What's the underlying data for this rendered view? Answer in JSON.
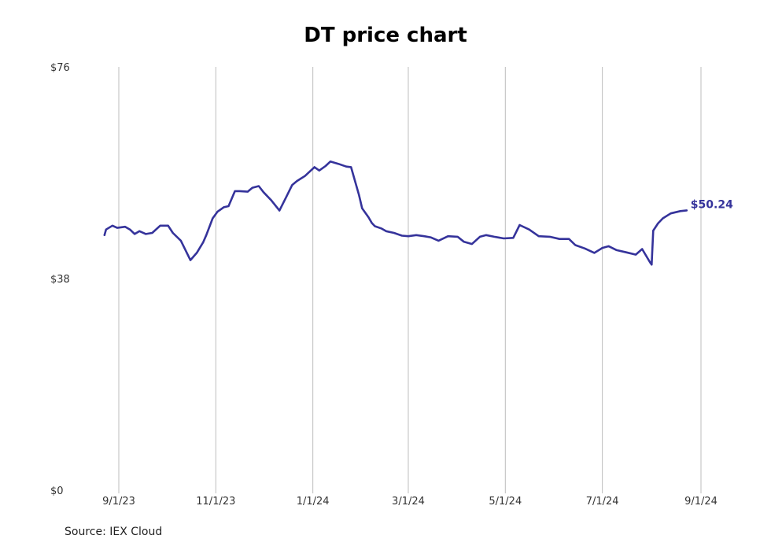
{
  "chart_data": {
    "type": "line",
    "title": "DT price chart",
    "source": "Source: IEX Cloud",
    "y_ticks": [
      "$76",
      "$38",
      "$0"
    ],
    "y_tick_values": [
      76,
      38,
      0
    ],
    "ylim": [
      0,
      76
    ],
    "x_ticks": [
      "9/1/23",
      "11/1/23",
      "1/1/24",
      "3/1/24",
      "5/1/24",
      "7/1/24",
      "9/1/24"
    ],
    "x_tick_dates": [
      "2023-09-01",
      "2023-11-01",
      "2024-01-01",
      "2024-03-01",
      "2024-05-01",
      "2024-07-01",
      "2024-09-01"
    ],
    "grid": "vertical",
    "line_color": "#35339b",
    "last_value_label": "$50.24",
    "series": [
      {
        "x": [
          "2023-08-23",
          "2023-08-24",
          "2023-08-28",
          "2023-08-31",
          "2023-09-05",
          "2023-09-08",
          "2023-09-11",
          "2023-09-14",
          "2023-09-18",
          "2023-09-22",
          "2023-09-27",
          "2023-10-02",
          "2023-10-05",
          "2023-10-10",
          "2023-10-16",
          "2023-10-20",
          "2023-10-24",
          "2023-10-26",
          "2023-10-30",
          "2023-11-02",
          "2023-11-06",
          "2023-11-09",
          "2023-11-13",
          "2023-11-16",
          "2023-11-21",
          "2023-11-24",
          "2023-11-28",
          "2023-12-01",
          "2023-12-06",
          "2023-12-11",
          "2023-12-15",
          "2023-12-19",
          "2023-12-22",
          "2023-12-27",
          "2024-01-02",
          "2024-01-05",
          "2024-01-09",
          "2024-01-12",
          "2024-01-17",
          "2024-01-22",
          "2024-01-25",
          "2024-01-30",
          "2024-02-01",
          "2024-02-05",
          "2024-02-07",
          "2024-02-09",
          "2024-02-13",
          "2024-02-16",
          "2024-02-21",
          "2024-02-26",
          "2024-03-01",
          "2024-03-06",
          "2024-03-11",
          "2024-03-15",
          "2024-03-20",
          "2024-03-26",
          "2024-04-01",
          "2024-04-05",
          "2024-04-10",
          "2024-04-15",
          "2024-04-19",
          "2024-04-24",
          "2024-04-30",
          "2024-05-06",
          "2024-05-10",
          "2024-05-16",
          "2024-05-22",
          "2024-05-29",
          "2024-06-04",
          "2024-06-10",
          "2024-06-14",
          "2024-06-20",
          "2024-06-26",
          "2024-07-01",
          "2024-07-05",
          "2024-07-10",
          "2024-07-16",
          "2024-07-22",
          "2024-07-26",
          "2024-07-31",
          "2024-08-01",
          "2024-08-02",
          "2024-08-05",
          "2024-08-08",
          "2024-08-13",
          "2024-08-19",
          "2024-08-23"
        ],
        "values": [
          45.8,
          46.8,
          47.5,
          47.1,
          47.3,
          46.8,
          46.0,
          46.5,
          46.0,
          46.2,
          47.5,
          47.5,
          46.2,
          44.8,
          41.3,
          42.6,
          44.5,
          45.8,
          48.8,
          50.0,
          50.8,
          51.0,
          53.7,
          53.7,
          53.6,
          54.3,
          54.6,
          53.5,
          52.0,
          50.2,
          52.5,
          54.8,
          55.5,
          56.4,
          58.0,
          57.4,
          58.2,
          59.0,
          58.6,
          58.1,
          58.0,
          53.0,
          50.6,
          49.0,
          48.0,
          47.4,
          47.0,
          46.5,
          46.2,
          45.7,
          45.6,
          45.8,
          45.6,
          45.4,
          44.8,
          45.6,
          45.5,
          44.6,
          44.2,
          45.5,
          45.8,
          45.5,
          45.2,
          45.3,
          47.6,
          46.8,
          45.6,
          45.5,
          45.1,
          45.1,
          44.0,
          43.4,
          42.6,
          43.5,
          43.8,
          43.1,
          42.7,
          42.3,
          43.3,
          40.9,
          40.5,
          46.6,
          47.9,
          48.8,
          49.7,
          50.1,
          50.24
        ]
      }
    ]
  }
}
